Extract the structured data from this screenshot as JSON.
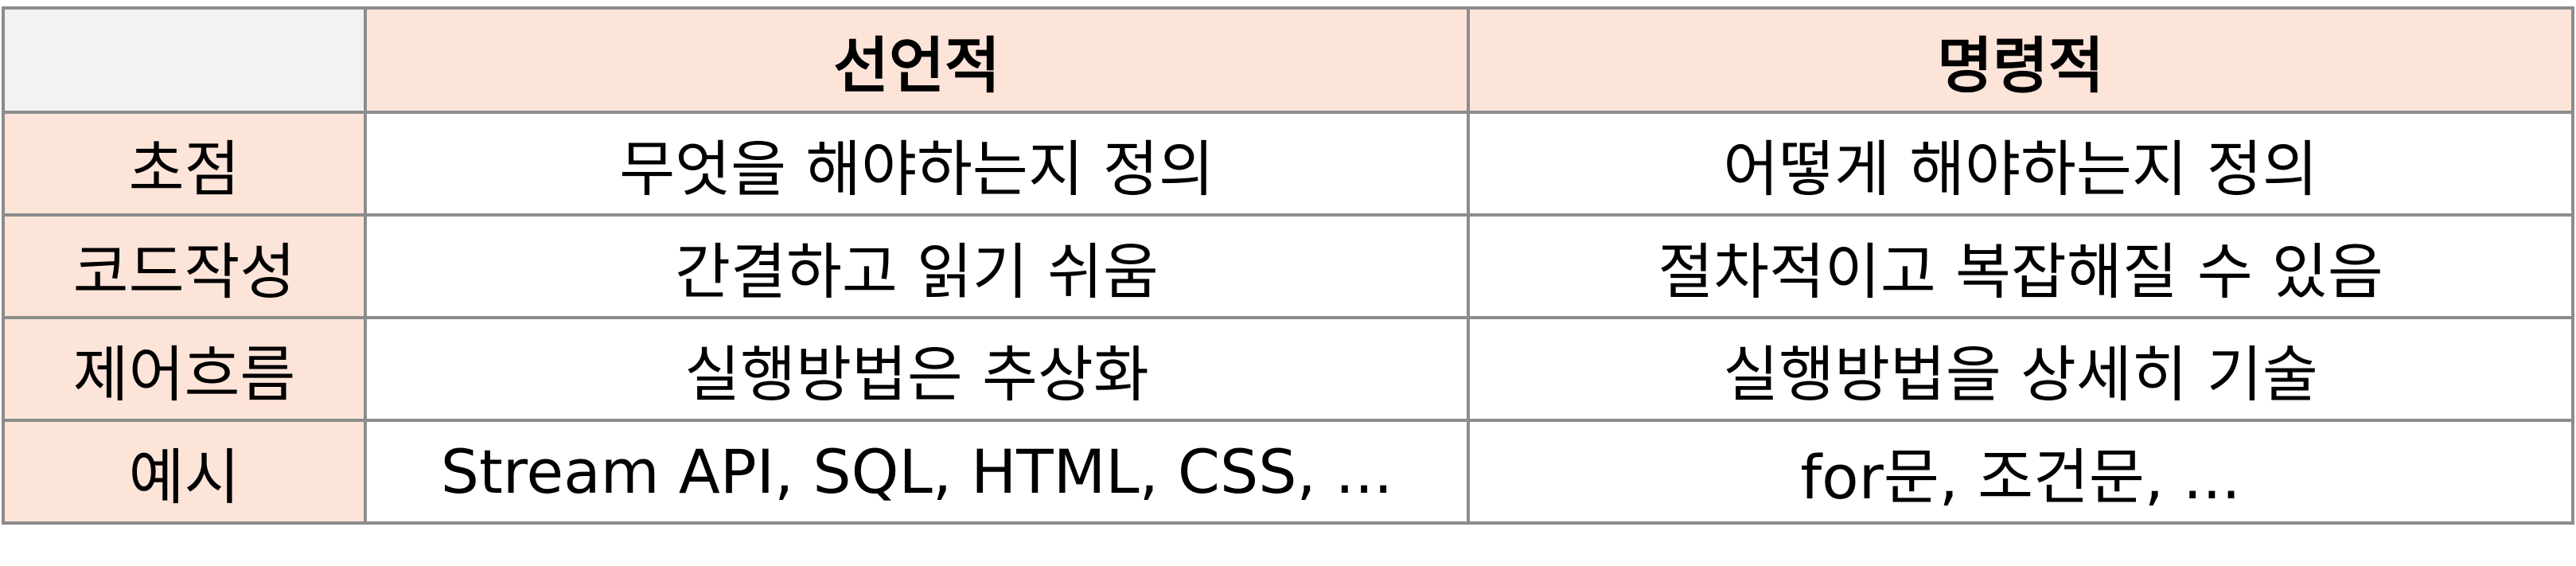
{
  "table": {
    "corner": "",
    "columns": [
      "선언적",
      "명령적"
    ],
    "rows": [
      {
        "label": "초점",
        "values": [
          "무엇을 해야하는지 정의",
          "어떻게 해야하는지 정의"
        ]
      },
      {
        "label": "코드작성",
        "values": [
          "간결하고 읽기 쉬움",
          "절차적이고 복잡해질 수 있음"
        ]
      },
      {
        "label": "제어흐름",
        "values": [
          "실행방법은 추상화",
          "실행방법을 상세히 기술"
        ]
      },
      {
        "label": "예시",
        "values": [
          "Stream API, SQL, HTML, CSS, ...",
          "for문, 조건문, ..."
        ]
      }
    ]
  },
  "colors": {
    "header_fill": "#fde4d9",
    "corner_fill": "#f2f2f2",
    "border": "#8c8c8c"
  }
}
